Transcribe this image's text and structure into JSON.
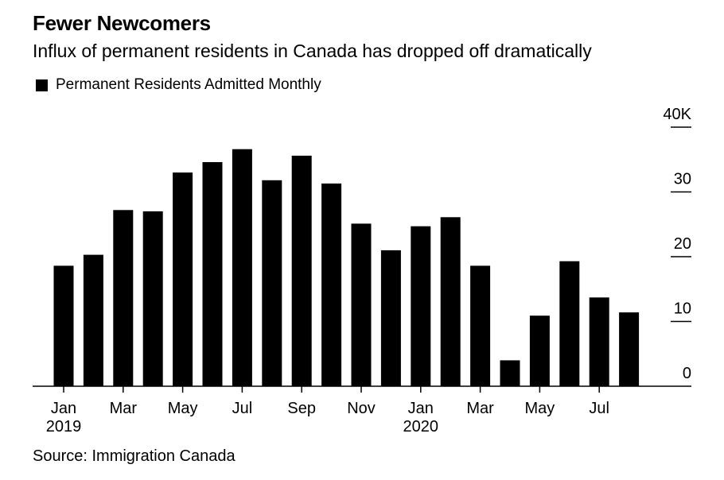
{
  "chart_data": {
    "type": "bar",
    "title": "Fewer Newcomers",
    "subtitle": "Influx of permanent residents in Canada has dropped off dramatically",
    "source": "Source: Immigration Canada",
    "legend": {
      "label": "Permanent Residents Admitted Monthly",
      "placement": "top-left"
    },
    "ylim": [
      0,
      40
    ],
    "yticks": [
      "0",
      "10",
      "20",
      "30",
      "40K"
    ],
    "ytick_values": [
      0,
      10,
      20,
      30,
      40
    ],
    "y_axis_position": "right",
    "xtick_labels": [
      {
        "index": 0,
        "line1": "Jan",
        "line2": "2019"
      },
      {
        "index": 2,
        "line1": "Mar",
        "line2": ""
      },
      {
        "index": 4,
        "line1": "May",
        "line2": ""
      },
      {
        "index": 6,
        "line1": "Jul",
        "line2": ""
      },
      {
        "index": 8,
        "line1": "Sep",
        "line2": ""
      },
      {
        "index": 10,
        "line1": "Nov",
        "line2": ""
      },
      {
        "index": 12,
        "line1": "Jan",
        "line2": "2020"
      },
      {
        "index": 14,
        "line1": "Mar",
        "line2": ""
      },
      {
        "index": 16,
        "line1": "May",
        "line2": ""
      },
      {
        "index": 18,
        "line1": "Jul",
        "line2": ""
      }
    ],
    "categories": [
      "Jan 2019",
      "Feb 2019",
      "Mar 2019",
      "Apr 2019",
      "May 2019",
      "Jun 2019",
      "Jul 2019",
      "Aug 2019",
      "Sep 2019",
      "Oct 2019",
      "Nov 2019",
      "Dec 2019",
      "Jan 2020",
      "Feb 2020",
      "Mar 2020",
      "Apr 2020",
      "May 2020",
      "Jun 2020",
      "Jul 2020",
      "Aug 2020"
    ],
    "values": [
      18.6,
      20.3,
      27.2,
      27.0,
      33.0,
      34.6,
      36.6,
      31.8,
      35.6,
      31.3,
      25.1,
      21.0,
      24.7,
      26.1,
      18.6,
      4.0,
      10.9,
      19.3,
      13.7,
      11.4
    ],
    "bar_color": "#000000",
    "grid": false
  }
}
